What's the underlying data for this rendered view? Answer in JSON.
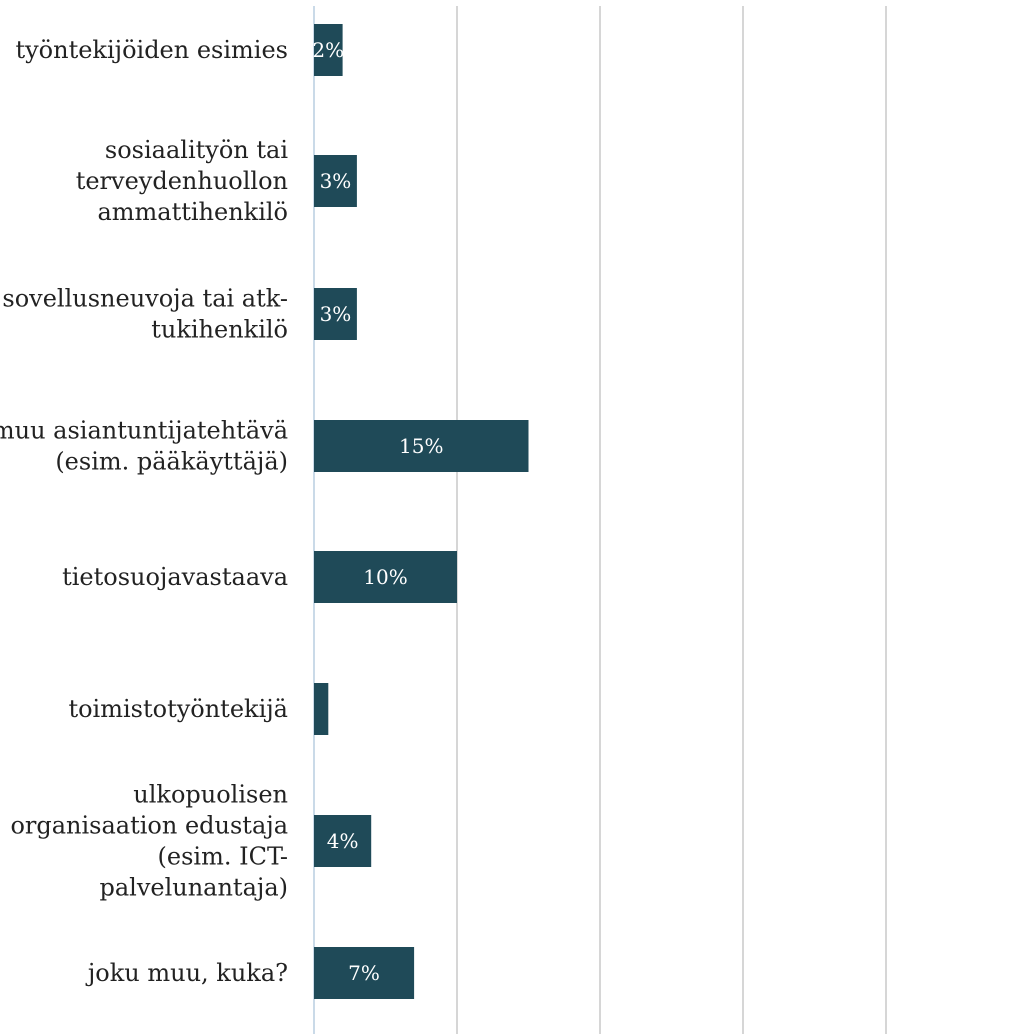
{
  "chart_data": {
    "type": "bar",
    "orientation": "horizontal",
    "categories": [
      "työntekijöiden esimies",
      "sosiaalityön tai terveydenhuollon ammattihenkilö",
      "sovellusneuvoja tai atk-tukihenkilö",
      "muu asiantuntijatehtävä (esim. pääkäyttäjä)",
      "tietosuojavastaava",
      "toimistotyöntekijä",
      "ulkopuolisen organisaation edustaja (esim. ICT-palvelunantaja)",
      "joku muu, kuka?"
    ],
    "category_lines": [
      [
        "työntekijöiden esimies"
      ],
      [
        "sosiaalityön tai",
        "terveydenhuollon",
        "ammattihenkilö"
      ],
      [
        "sovellusneuvoja tai atk-",
        "tukihenkilö"
      ],
      [
        "muu asiantuntijatehtävä",
        "(esim. pääkäyttäjä)"
      ],
      [
        "tietosuojavastaava"
      ],
      [
        "toimistotyöntekijä"
      ],
      [
        "ulkopuolisen",
        "organisaation edustaja",
        "(esim. ICT-",
        "palvelunantaja)"
      ],
      [
        "joku muu, kuka?"
      ]
    ],
    "values": [
      2,
      3,
      3,
      15,
      10,
      1,
      4,
      7
    ],
    "data_labels": [
      "2%",
      "3%",
      "3%",
      "15%",
      "10%",
      "",
      "4%",
      "7%"
    ],
    "xlim": [
      0,
      50
    ],
    "x_gridlines": [
      0,
      10,
      20,
      30,
      40,
      50
    ],
    "bar_color": "#1f4a58",
    "gridline_color": "#c8c8c8",
    "axis_color": "#b9cde0",
    "grid": true
  }
}
